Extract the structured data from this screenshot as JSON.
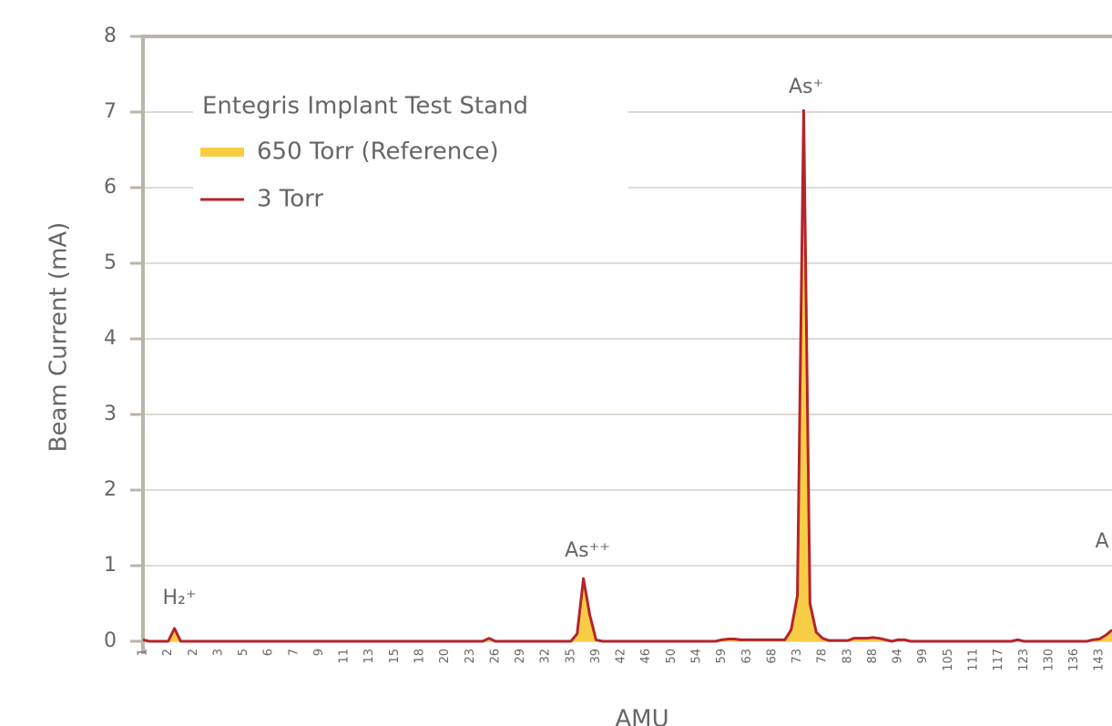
{
  "chart_data": {
    "type": "line",
    "y_label": "Beam Current (mA)",
    "x_label": "AMU",
    "legend_title": "Entegris Implant Test Stand",
    "annotations": [
      "H₂⁺",
      "As⁺⁺",
      "As⁺",
      "A"
    ],
    "categories": [
      "1",
      null,
      null,
      null,
      "2",
      null,
      null,
      null,
      "2",
      null,
      null,
      null,
      "3",
      null,
      null,
      null,
      "5",
      null,
      null,
      null,
      "6",
      null,
      null,
      null,
      "7",
      null,
      null,
      null,
      "9",
      null,
      null,
      null,
      "11",
      null,
      null,
      null,
      "13",
      null,
      null,
      null,
      "15",
      null,
      null,
      null,
      "18",
      null,
      null,
      null,
      "20",
      null,
      null,
      null,
      "23",
      null,
      null,
      null,
      "26",
      null,
      null,
      null,
      "29",
      null,
      null,
      null,
      "32",
      null,
      null,
      null,
      "35",
      null,
      null,
      null,
      "39",
      null,
      null,
      null,
      "42",
      null,
      null,
      null,
      "46",
      null,
      null,
      null,
      "50",
      null,
      null,
      null,
      "54",
      null,
      null,
      null,
      "59",
      null,
      null,
      null,
      "63",
      null,
      null,
      null,
      "68",
      null,
      null,
      null,
      "73",
      null,
      null,
      null,
      "78",
      null,
      null,
      null,
      "83",
      null,
      null,
      null,
      "88",
      null,
      null,
      null,
      "94",
      null,
      null,
      null,
      "99",
      null,
      null,
      null,
      "105",
      null,
      null,
      null,
      "111",
      null,
      null,
      null,
      "117",
      null,
      null,
      null,
      "123",
      null,
      null,
      null,
      "130",
      null,
      null,
      null,
      "136",
      null,
      null,
      null,
      "143",
      null,
      null
    ],
    "series": [
      {
        "name": "650 Torr (Reference)",
        "color": "#f7cd45",
        "kind": "area",
        "values": [
          0.02,
          0,
          0,
          0,
          0,
          0.17,
          0,
          0,
          0,
          0,
          0,
          0,
          0,
          0,
          0,
          0,
          0,
          0,
          0,
          0,
          0,
          0,
          0,
          0,
          0,
          0,
          0,
          0,
          0,
          0,
          0,
          0,
          0,
          0,
          0,
          0,
          0,
          0,
          0,
          0,
          0,
          0,
          0,
          0,
          0,
          0,
          0,
          0,
          0,
          0,
          0,
          0,
          0,
          0,
          0,
          0.04,
          0,
          0,
          0,
          0,
          0,
          0,
          0,
          0,
          0,
          0,
          0,
          0,
          0,
          0.1,
          0.83,
          0.35,
          0.02,
          0,
          0,
          0,
          0,
          0,
          0,
          0,
          0,
          0,
          0,
          0,
          0,
          0,
          0,
          0,
          0,
          0,
          0,
          0,
          0.02,
          0.03,
          0.03,
          0.02,
          0.02,
          0.02,
          0.02,
          0.02,
          0.02,
          0.02,
          0.02,
          0.15,
          0.6,
          7.02,
          0.5,
          0.12,
          0.04,
          0.01,
          0.01,
          0.01,
          0.01,
          0.04,
          0.04,
          0.04,
          0.05,
          0.04,
          0.02,
          0,
          0.02,
          0.02,
          0,
          0,
          0,
          0,
          0,
          0,
          0,
          0,
          0,
          0,
          0,
          0,
          0,
          0,
          0,
          0,
          0,
          0.02,
          0,
          0,
          0,
          0,
          0,
          0,
          0,
          0,
          0,
          0,
          0,
          0.02,
          0.03,
          0.08,
          0.15
        ]
      },
      {
        "name": "3 Torr",
        "color": "#b5232b",
        "kind": "line",
        "values": [
          0.02,
          0,
          0,
          0,
          0,
          0.17,
          0,
          0,
          0,
          0,
          0,
          0,
          0,
          0,
          0,
          0,
          0,
          0,
          0,
          0,
          0,
          0,
          0,
          0,
          0,
          0,
          0,
          0,
          0,
          0,
          0,
          0,
          0,
          0,
          0,
          0,
          0,
          0,
          0,
          0,
          0,
          0,
          0,
          0,
          0,
          0,
          0,
          0,
          0,
          0,
          0,
          0,
          0,
          0,
          0,
          0.04,
          0,
          0,
          0,
          0,
          0,
          0,
          0,
          0,
          0,
          0,
          0,
          0,
          0,
          0.1,
          0.83,
          0.35,
          0.02,
          0,
          0,
          0,
          0,
          0,
          0,
          0,
          0,
          0,
          0,
          0,
          0,
          0,
          0,
          0,
          0,
          0,
          0,
          0,
          0.02,
          0.03,
          0.03,
          0.02,
          0.02,
          0.02,
          0.02,
          0.02,
          0.02,
          0.02,
          0.02,
          0.15,
          0.6,
          7.02,
          0.5,
          0.12,
          0.04,
          0.01,
          0.01,
          0.01,
          0.01,
          0.04,
          0.04,
          0.04,
          0.05,
          0.04,
          0.02,
          0,
          0.02,
          0.02,
          0,
          0,
          0,
          0,
          0,
          0,
          0,
          0,
          0,
          0,
          0,
          0,
          0,
          0,
          0,
          0,
          0,
          0.02,
          0,
          0,
          0,
          0,
          0,
          0,
          0,
          0,
          0,
          0,
          0,
          0.02,
          0.03,
          0.08,
          0.15
        ]
      }
    ],
    "ylim": [
      0,
      8
    ],
    "yticks": [
      0,
      1,
      2,
      3,
      4,
      5,
      6,
      7,
      8
    ],
    "grid": true
  }
}
